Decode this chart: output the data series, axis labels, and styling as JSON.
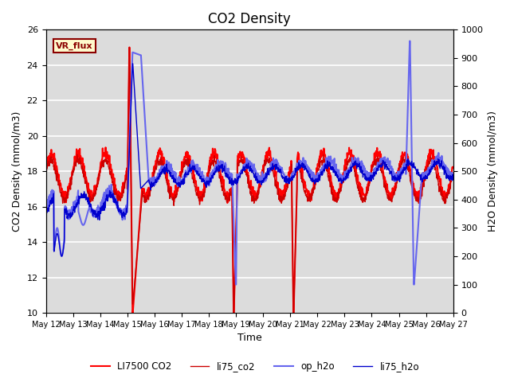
{
  "title": "CO2 Density",
  "xlabel": "Time",
  "ylabel_left": "CO2 Density (mmol/m3)",
  "ylabel_right": "H2O Density (mmol/m3)",
  "ylim_left": [
    10,
    26
  ],
  "ylim_right": [
    0,
    1000
  ],
  "yticks_left": [
    10,
    12,
    14,
    16,
    18,
    20,
    22,
    24,
    26
  ],
  "yticks_right": [
    0,
    100,
    200,
    300,
    400,
    500,
    600,
    700,
    800,
    900,
    1000
  ],
  "xtick_labels": [
    "May 12",
    "May 13",
    "May 14",
    "May 15",
    "May 16",
    "May 17",
    "May 18",
    "May 19",
    "May 20",
    "May 21",
    "May 22",
    "May 23",
    "May 24",
    "May 25",
    "May 26",
    "May 27"
  ],
  "annotation_text": "VR_flux",
  "annotation_color": "#8B0000",
  "annotation_bg": "#FFFACD",
  "background_color": "#DCDCDC",
  "legend_entries": [
    "LI7500 CO2",
    "li75_co2",
    "op_h2o",
    "li75_h2o"
  ],
  "li7500_color": "#FF0000",
  "li75_co2_color": "#CC0000",
  "op_h2o_color": "#6666EE",
  "li75_h2o_color": "#0000CC",
  "title_fontsize": 12,
  "label_fontsize": 9,
  "tick_fontsize": 8
}
